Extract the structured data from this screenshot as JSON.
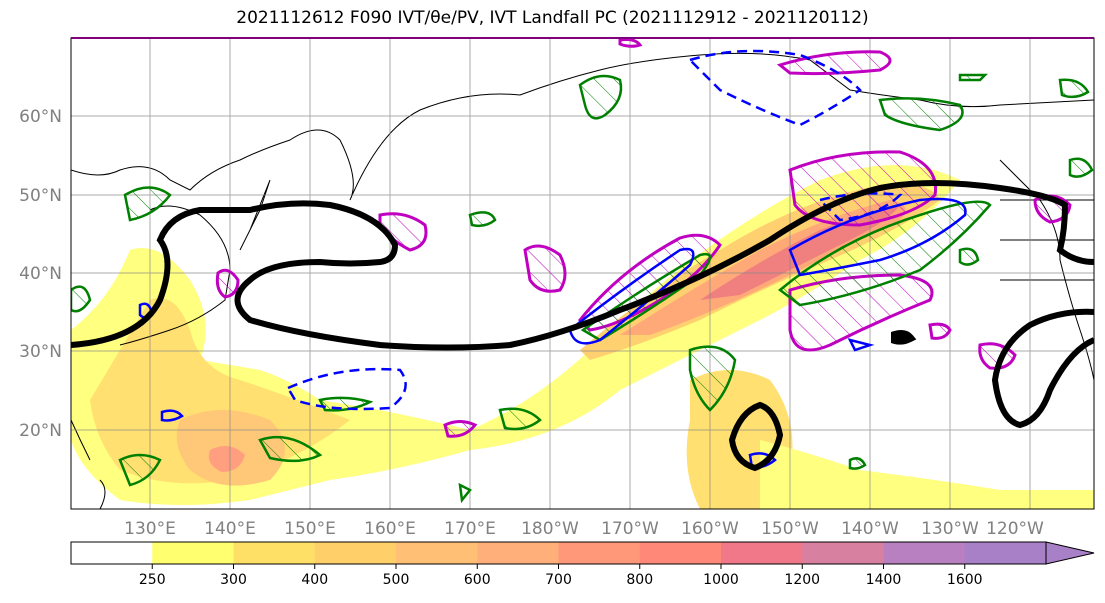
{
  "title": "2021112612 F090 IVT/θe/PV, IVT Landfall PC (2021112912 - 2021120112)",
  "map": {
    "lat_labels": [
      "60°N",
      "50°N",
      "40°N",
      "30°N",
      "20°N"
    ],
    "lon_labels": [
      "130°E",
      "140°E",
      "150°E",
      "160°E",
      "170°E",
      "180°W",
      "170°W",
      "160°W",
      "150°W",
      "140°W",
      "130°W",
      "120°W"
    ]
  },
  "colorbar": {
    "ticks": [
      "250",
      "300",
      "400",
      "500",
      "600",
      "700",
      "800",
      "1000",
      "1200",
      "1400",
      "1600"
    ],
    "colors": [
      "#ffffff",
      "#ffff70",
      "#ffe066",
      "#ffd06a",
      "#ffbf74",
      "#ffb07a",
      "#ff9878",
      "#ff8878",
      "#f07888",
      "#d880a0",
      "#b880c0",
      "#a880c8"
    ]
  },
  "colors": {
    "ivt_contour": "#000000",
    "theta_e": "#008000",
    "pv_negative": "#0000ff",
    "pv_positive": "#c000c0"
  }
}
